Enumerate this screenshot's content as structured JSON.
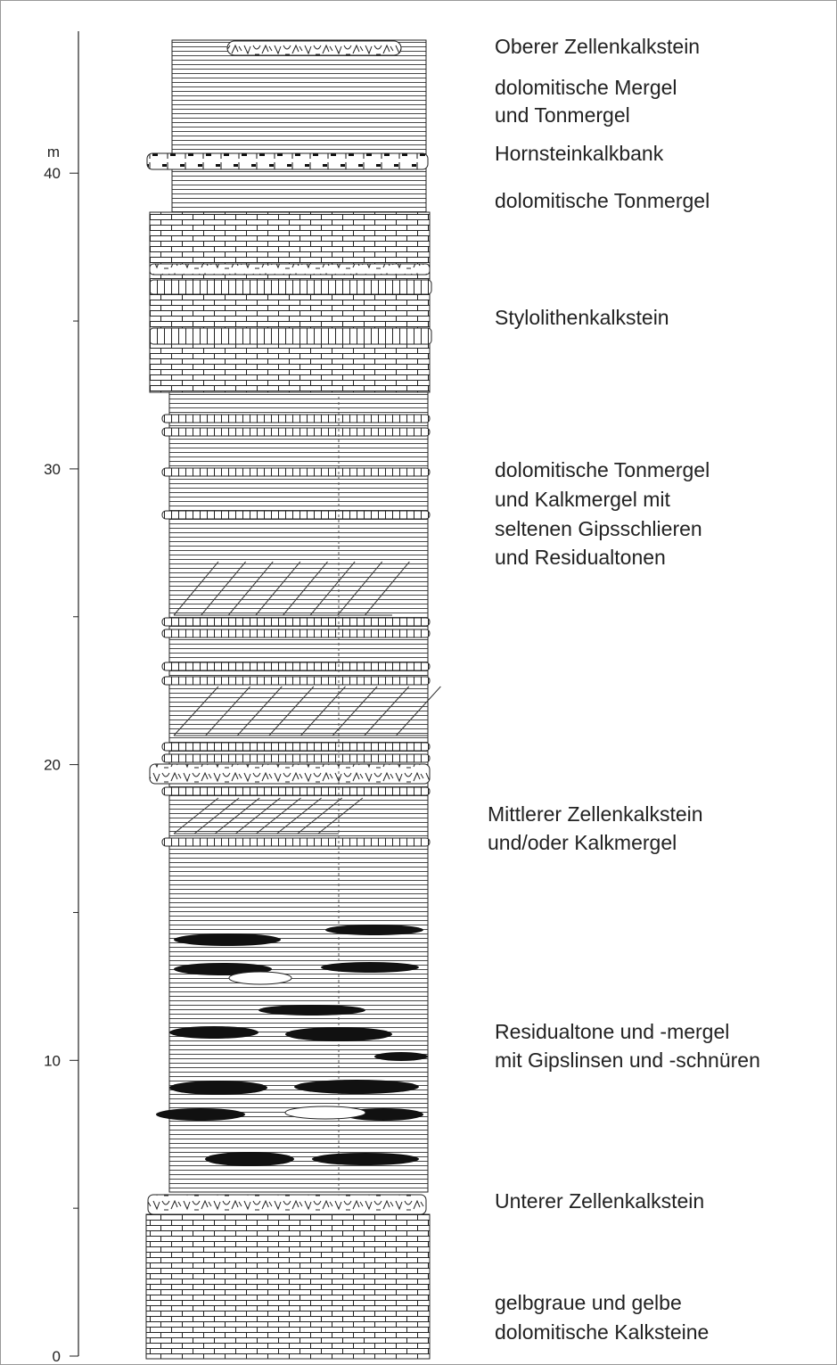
{
  "scale": {
    "unit": "m",
    "ylim": [
      0,
      44.8
    ],
    "ticks": [
      0,
      10,
      20,
      30,
      40
    ],
    "minor_ticks": [
      5,
      15,
      25,
      35
    ]
  },
  "layers": [
    {
      "lines": [
        "Oberer Zellenkalkstein"
      ]
    },
    {
      "lines": [
        "dolomitische Mergel",
        "und Tonmergel"
      ]
    },
    {
      "lines": [
        "Hornsteinkalkbank"
      ]
    },
    {
      "lines": [
        "dolomitische Tonmergel"
      ]
    },
    {
      "lines": [
        "Stylolithenkalkstein"
      ]
    },
    {
      "lines": [
        "dolomitische Tonmergel",
        "und Kalkmergel mit",
        "seltenen Gipsschlieren",
        "und Residualtonen"
      ]
    },
    {
      "lines": [
        "Mittlerer Zellenkalkstein",
        "und/oder Kalkmergel"
      ]
    },
    {
      "lines": [
        "Residualtone und -mergel",
        "mit Gipslinsen und -schnüren"
      ]
    },
    {
      "lines": [
        "Unterer Zellenkalkstein"
      ]
    },
    {
      "lines": [
        "gelbgraue und gelbe",
        "dolomitische Kalksteine"
      ]
    }
  ]
}
